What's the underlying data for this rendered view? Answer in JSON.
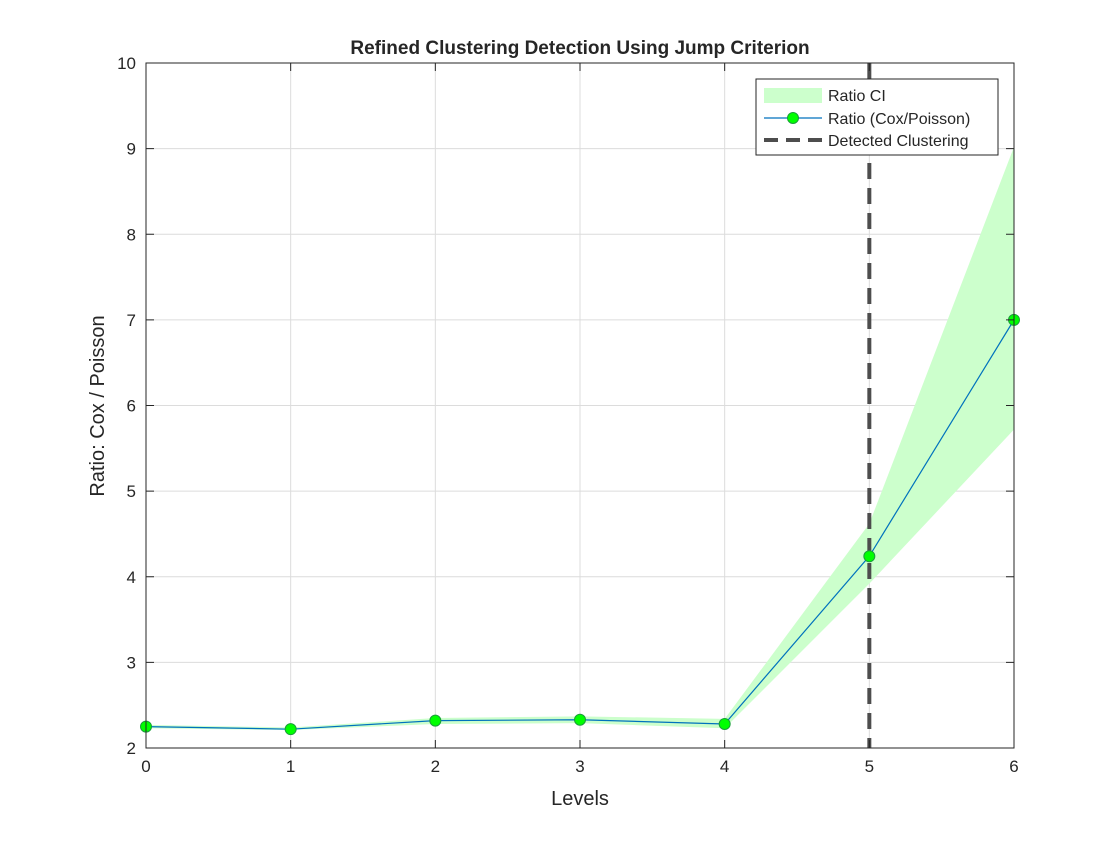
{
  "chart_data": {
    "type": "line",
    "title": "Refined Clustering Detection Using Jump Criterion",
    "xlabel": "Levels",
    "ylabel": "Ratio: Cox / Poisson",
    "xlim": [
      0,
      6
    ],
    "ylim": [
      2,
      10
    ],
    "xticks": [
      0,
      1,
      2,
      3,
      4,
      5,
      6
    ],
    "yticks": [
      2,
      3,
      4,
      5,
      6,
      7,
      8,
      9,
      10
    ],
    "grid": true,
    "legend_position": "top-right",
    "x": [
      0,
      1,
      2,
      3,
      4,
      5,
      6
    ],
    "series": [
      {
        "name": "Ratio (Cox/Poisson)",
        "values": [
          2.25,
          2.22,
          2.32,
          2.33,
          2.28,
          4.24,
          7.0
        ],
        "color": "#0072BD",
        "marker_color": "#00FF00"
      }
    ],
    "ci": {
      "name": "Ratio CI",
      "lower": [
        2.23,
        2.21,
        2.28,
        2.29,
        2.23,
        3.92,
        5.72
      ],
      "upper": [
        2.27,
        2.24,
        2.35,
        2.37,
        2.34,
        4.62,
        9.02
      ],
      "color": "#CCFFCC"
    },
    "vline": {
      "name": "Detected Clustering",
      "x": 5,
      "color": "#4D4D4D",
      "style": "dashed"
    }
  }
}
